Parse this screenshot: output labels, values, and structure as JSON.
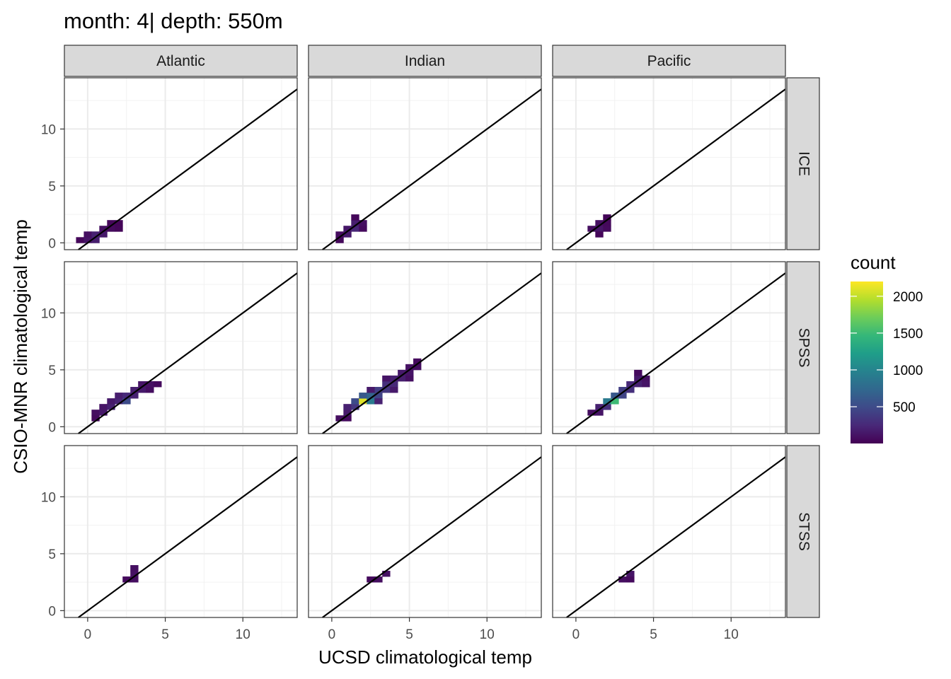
{
  "chart_data": {
    "type": "heatmap",
    "title": "month: 4| depth: 550m",
    "xlabel": "UCSD climatological temp",
    "ylabel": "CSIO-MNR climatological temp",
    "xlim": [
      -1.5,
      13.5
    ],
    "ylim": [
      -0.6,
      14.5
    ],
    "x_ticks": [
      0,
      5,
      10
    ],
    "y_ticks": [
      0,
      5,
      10
    ],
    "grid": true,
    "reference_line": {
      "slope": 1,
      "intercept": 0
    },
    "columns": [
      "Atlantic",
      "Indian",
      "Pacific"
    ],
    "rows": [
      "ICE",
      "SPSS",
      "STSS"
    ],
    "bin_width": 0.5,
    "legend": {
      "title": "count",
      "position": "right",
      "ticks": [
        500,
        1000,
        1500,
        2000
      ],
      "range": [
        1,
        2200
      ],
      "colors": [
        "#440154",
        "#482878",
        "#3E4A89",
        "#31688E",
        "#26828E",
        "#1F9E89",
        "#35B779",
        "#6DCD59",
        "#B4DE2C",
        "#FDE725"
      ]
    },
    "panels": [
      {
        "column": "Atlantic",
        "row": "ICE",
        "cells": [
          [
            -0.5,
            0.25,
            40
          ],
          [
            0.0,
            0.25,
            120
          ],
          [
            0.5,
            0.25,
            180
          ],
          [
            0.0,
            0.75,
            90
          ],
          [
            0.5,
            0.75,
            200
          ],
          [
            1.0,
            0.75,
            150
          ],
          [
            1.0,
            1.25,
            90
          ],
          [
            1.5,
            1.25,
            60
          ],
          [
            2.0,
            1.25,
            30
          ],
          [
            1.5,
            1.75,
            40
          ],
          [
            2.0,
            1.75,
            25
          ]
        ]
      },
      {
        "column": "Indian",
        "row": "ICE",
        "cells": [
          [
            0.5,
            0.25,
            50
          ],
          [
            0.5,
            0.75,
            70
          ],
          [
            1.0,
            0.75,
            160
          ],
          [
            1.0,
            1.25,
            140
          ],
          [
            1.5,
            1.25,
            230
          ],
          [
            1.5,
            1.75,
            180
          ],
          [
            2.0,
            1.25,
            60
          ],
          [
            2.0,
            1.75,
            90
          ],
          [
            1.5,
            2.25,
            40
          ]
        ]
      },
      {
        "column": "Pacific",
        "row": "ICE",
        "cells": [
          [
            1.0,
            1.25,
            80
          ],
          [
            1.5,
            1.25,
            130
          ],
          [
            2.0,
            1.25,
            60
          ],
          [
            1.5,
            1.75,
            90
          ],
          [
            2.0,
            1.75,
            50
          ],
          [
            1.5,
            0.75,
            40
          ],
          [
            2.0,
            2.25,
            30
          ]
        ]
      },
      {
        "column": "Atlantic",
        "row": "SPSS",
        "cells": [
          [
            0.5,
            0.75,
            60
          ],
          [
            0.5,
            1.25,
            80
          ],
          [
            1.0,
            1.25,
            150
          ],
          [
            1.0,
            1.75,
            120
          ],
          [
            1.5,
            1.75,
            200
          ],
          [
            1.5,
            2.25,
            150
          ],
          [
            2.0,
            2.25,
            220
          ],
          [
            2.0,
            2.75,
            180
          ],
          [
            2.5,
            2.25,
            500
          ],
          [
            2.5,
            2.75,
            260
          ],
          [
            3.0,
            2.75,
            200
          ],
          [
            3.0,
            3.25,
            180
          ],
          [
            3.5,
            3.25,
            150
          ],
          [
            3.5,
            3.75,
            120
          ],
          [
            4.0,
            3.75,
            100
          ],
          [
            4.5,
            3.75,
            60
          ],
          [
            4.0,
            3.25,
            80
          ]
        ]
      },
      {
        "column": "Indian",
        "row": "SPSS",
        "cells": [
          [
            0.5,
            0.75,
            80
          ],
          [
            1.0,
            0.75,
            60
          ],
          [
            1.0,
            1.25,
            160
          ],
          [
            1.0,
            1.75,
            200
          ],
          [
            1.5,
            1.75,
            350
          ],
          [
            1.5,
            2.25,
            500
          ],
          [
            2.0,
            2.25,
            2100
          ],
          [
            2.0,
            2.75,
            600
          ],
          [
            2.5,
            2.25,
            900
          ],
          [
            2.5,
            2.75,
            700
          ],
          [
            3.0,
            2.75,
            450
          ],
          [
            3.0,
            3.25,
            400
          ],
          [
            3.5,
            3.25,
            350
          ],
          [
            3.5,
            3.75,
            300
          ],
          [
            4.0,
            3.75,
            250
          ],
          [
            4.0,
            4.25,
            200
          ],
          [
            4.5,
            4.25,
            180
          ],
          [
            4.5,
            4.75,
            150
          ],
          [
            5.0,
            4.75,
            120
          ],
          [
            5.0,
            5.25,
            100
          ],
          [
            5.5,
            5.25,
            80
          ],
          [
            5.5,
            5.75,
            60
          ],
          [
            3.5,
            4.25,
            120
          ],
          [
            4.0,
            3.25,
            150
          ],
          [
            3.0,
            2.25,
            200
          ],
          [
            2.5,
            3.25,
            150
          ],
          [
            5.0,
            4.25,
            90
          ]
        ]
      },
      {
        "column": "Pacific",
        "row": "SPSS",
        "cells": [
          [
            1.0,
            1.25,
            80
          ],
          [
            1.5,
            1.25,
            120
          ],
          [
            1.5,
            1.75,
            200
          ],
          [
            2.0,
            1.75,
            300
          ],
          [
            2.0,
            2.25,
            900
          ],
          [
            2.5,
            2.25,
            1500
          ],
          [
            2.5,
            2.75,
            600
          ],
          [
            3.0,
            2.75,
            450
          ],
          [
            3.0,
            3.25,
            400
          ],
          [
            3.5,
            3.25,
            300
          ],
          [
            3.5,
            3.75,
            250
          ],
          [
            4.0,
            3.75,
            200
          ],
          [
            4.0,
            4.25,
            150
          ],
          [
            4.5,
            4.25,
            100
          ],
          [
            4.5,
            3.75,
            120
          ],
          [
            4.0,
            4.75,
            60
          ]
        ]
      },
      {
        "column": "Atlantic",
        "row": "STSS",
        "cells": [
          [
            2.5,
            2.75,
            60
          ],
          [
            3.0,
            2.75,
            80
          ],
          [
            3.0,
            3.25,
            100
          ],
          [
            3.0,
            3.75,
            90
          ]
        ]
      },
      {
        "column": "Indian",
        "row": "STSS",
        "cells": [
          [
            2.5,
            2.75,
            60
          ],
          [
            3.0,
            2.75,
            80
          ],
          [
            3.5,
            3.25,
            100
          ]
        ]
      },
      {
        "column": "Pacific",
        "row": "STSS",
        "cells": [
          [
            3.0,
            2.75,
            80
          ],
          [
            3.5,
            3.25,
            120
          ],
          [
            3.5,
            2.75,
            60
          ]
        ]
      }
    ]
  }
}
